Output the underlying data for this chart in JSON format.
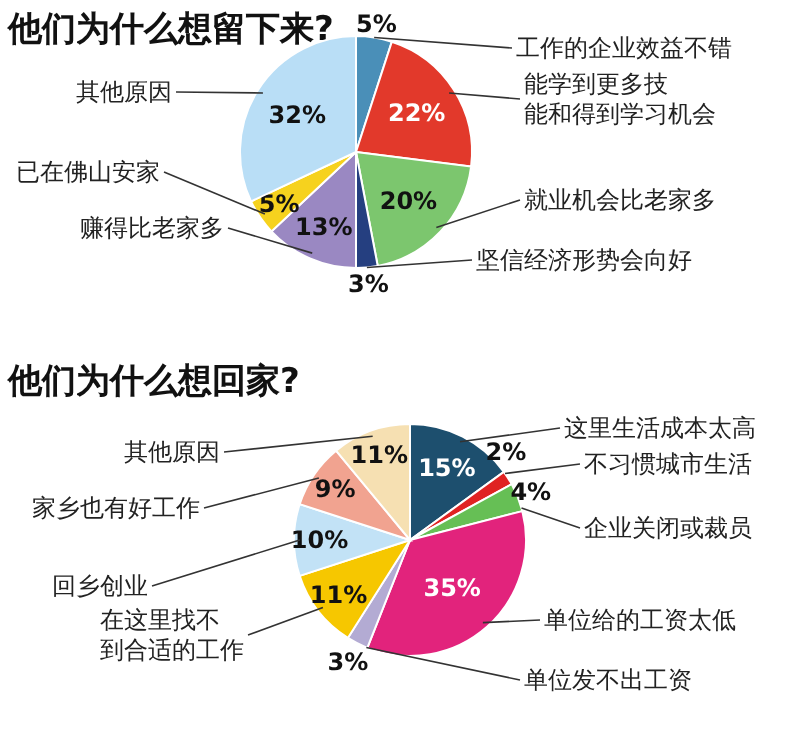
{
  "chart_data": [
    {
      "type": "pie",
      "title": "他们为什么想留下来?",
      "categories": [
        "工作的企业效益不错",
        "能学到更多技能和得到学习机会",
        "就业机会比老家多",
        "坚信经济形势会向好",
        "赚得比老家多",
        "已在佛山安家",
        "其他原因"
      ],
      "values": [
        5,
        22,
        20,
        3,
        13,
        5,
        32
      ],
      "value_labels": [
        "5%",
        "22%",
        "20%",
        "3%",
        "13%",
        "5%",
        "32%"
      ],
      "colors": [
        "#4a8fb8",
        "#e2392b",
        "#7cc66e",
        "#253f80",
        "#9a88c2",
        "#f6d21e",
        "#b9def6"
      ],
      "legend": false
    },
    {
      "type": "pie",
      "title": "他们为什么想回家?",
      "categories": [
        "这里生活成本太高",
        "不习惯城市生活",
        "企业关闭或裁员",
        "单位给的工资太低",
        "单位发不出工资",
        "在这里找不到合适的工作",
        "回乡创业",
        "家乡也有好工作",
        "其他原因"
      ],
      "values": [
        15,
        2,
        4,
        35,
        3,
        11,
        10,
        9,
        11
      ],
      "value_labels": [
        "15%",
        "2%",
        "4%",
        "35%",
        "3%",
        "11%",
        "10%",
        "9%",
        "11%"
      ],
      "colors": [
        "#1d4f6e",
        "#e02222",
        "#66bf55",
        "#e2237c",
        "#b3abd3",
        "#f6c700",
        "#c2e2f6",
        "#f1a390",
        "#f6e0b2"
      ],
      "legend": false
    }
  ]
}
